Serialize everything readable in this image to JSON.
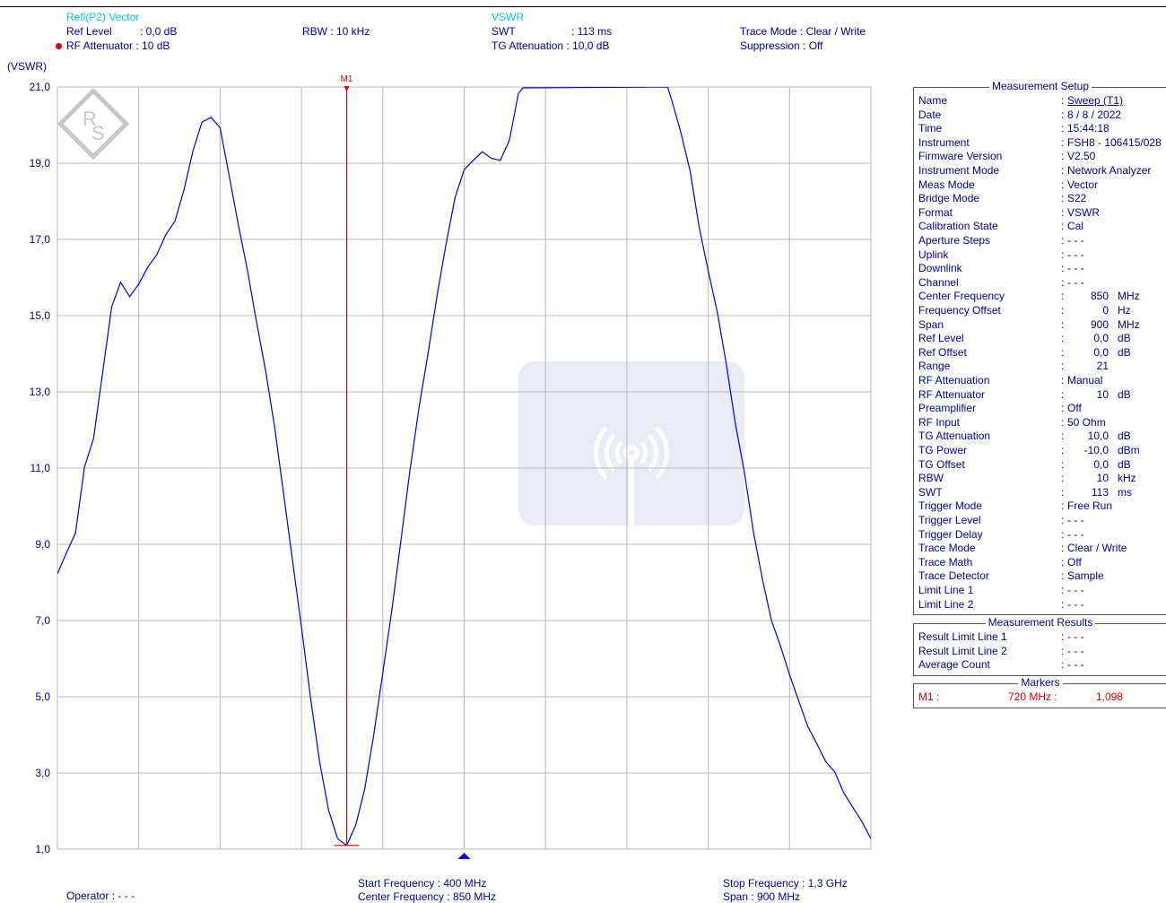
{
  "header": {
    "title": "Refl(P2) Vector",
    "ref_level_label": "Ref Level",
    "ref_level_value": ":   0,0 dB",
    "rf_att_label": "RF Attenuator : 10    dB",
    "rbw": "RBW : 10 kHz",
    "mode_title": "VSWR",
    "swt_label": "SWT",
    "swt_value": ": 113 ms",
    "tg_att": "TG Attenuation : 10,0 dB",
    "trace_mode": "Trace Mode : Clear / Write",
    "suppression": "Suppression : Off"
  },
  "footer": {
    "operator": "Operator : - - -",
    "start_freq": "Start Frequency    : 400 MHz",
    "center_freq": "Center Frequency : 850 MHz",
    "stop_freq": "Stop Frequency :   1,3 GHz",
    "span": "Span                   :  900   MHz"
  },
  "chart_data": {
    "type": "line",
    "ylabel": "(VSWR)",
    "ylim": [
      1,
      21
    ],
    "xlim": [
      400,
      1300
    ],
    "x_unit": "MHz",
    "y_ticks": [
      "21,0",
      "19,0",
      "17,0",
      "15,0",
      "13,0",
      "11,0",
      "9,0",
      "7,0",
      "5,0",
      "3,0",
      "1,0"
    ],
    "grid": true,
    "trace_color": "#0000dd",
    "marker_color": "#e00000",
    "marker": {
      "name": "M1",
      "x": 720,
      "y": 1.098
    },
    "series": [
      {
        "x": [
          400,
          410,
          420,
          430,
          440,
          450,
          460,
          470,
          480,
          490,
          500,
          510,
          520,
          530,
          540,
          550,
          560,
          570,
          580,
          590,
          600,
          610,
          620,
          630,
          640,
          650,
          660,
          670,
          680,
          690,
          700,
          710,
          720,
          730,
          740,
          750,
          760,
          770,
          780,
          790,
          800,
          810,
          820,
          830,
          840,
          850,
          860,
          870,
          880,
          890,
          900,
          910,
          915,
          1075,
          1080,
          1090,
          1100,
          1110,
          1120,
          1130,
          1140,
          1150,
          1160,
          1170,
          1180,
          1190,
          1200,
          1210,
          1220,
          1230,
          1240,
          1250,
          1260,
          1270,
          1280,
          1290,
          1300
        ],
        "y": [
          8.2,
          8.8,
          9.3,
          11.0,
          11.8,
          13.5,
          15.2,
          15.9,
          15.5,
          15.8,
          16.3,
          16.6,
          17.1,
          17.5,
          18.3,
          19.3,
          20.1,
          20.2,
          19.9,
          18.7,
          17.4,
          16.2,
          14.9,
          13.6,
          12.1,
          10.4,
          8.6,
          6.8,
          5.0,
          3.3,
          2.0,
          1.3,
          1.1,
          1.6,
          2.6,
          4.0,
          5.6,
          7.3,
          9.1,
          10.9,
          12.6,
          14.0,
          15.5,
          16.9,
          18.1,
          18.8,
          19.1,
          19.3,
          19.1,
          19.1,
          19.6,
          20.8,
          21.0,
          21.0,
          20.6,
          19.8,
          18.8,
          17.3,
          16.2,
          15.1,
          13.7,
          12.2,
          10.9,
          9.3,
          8.1,
          7.0,
          6.3,
          5.6,
          4.9,
          4.2,
          3.8,
          3.3,
          3.0,
          2.5,
          2.1,
          1.7,
          1.3
        ]
      }
    ]
  },
  "setup_panel": {
    "title": "Measurement Setup",
    "rows": [
      {
        "k": "Name",
        "v": "Sweep (T1)"
      },
      {
        "k": "Date",
        "v": "8 / 8 / 2022"
      },
      {
        "k": "Time",
        "v": "15:44:18"
      },
      {
        "k": "Instrument",
        "v": "FSH8 - 106415/028"
      },
      {
        "k": "Firmware Version",
        "v": "V2.50"
      },
      {
        "k": "Instrument Mode",
        "v": "Network Analyzer"
      },
      {
        "k": "Meas Mode",
        "v": "Vector"
      },
      {
        "k": "Bridge Mode",
        "v": "S22"
      },
      {
        "k": "Format",
        "v": "VSWR"
      },
      {
        "k": "Calibration State",
        "v": "Cal"
      },
      {
        "k": "Aperture Steps",
        "v": "- - -"
      },
      {
        "k": "Uplink",
        "v": "- - -"
      },
      {
        "k": "Downlink",
        "v": "- - -"
      },
      {
        "k": "Channel",
        "v": "- - -"
      },
      {
        "k": "Center Frequency",
        "n": "850",
        "u": "MHz"
      },
      {
        "k": "Frequency Offset",
        "n": "0",
        "u": "Hz"
      },
      {
        "k": "Span",
        "n": "900",
        "u": "MHz"
      },
      {
        "k": "Ref Level",
        "n": "0,0",
        "u": "dB"
      },
      {
        "k": "Ref Offset",
        "n": "0,0",
        "u": "dB"
      },
      {
        "k": "Range",
        "n": "21",
        "u": ""
      },
      {
        "k": "RF Attenuation",
        "v": "Manual"
      },
      {
        "k": "RF Attenuator",
        "n": "10",
        "u": "dB"
      },
      {
        "k": "Preamplifier",
        "v": "Off"
      },
      {
        "k": "RF Input",
        "v": "50 Ohm"
      },
      {
        "k": "TG Attenuation",
        "n": "10,0",
        "u": "dB"
      },
      {
        "k": "TG Power",
        "n": "-10,0",
        "u": "dBm"
      },
      {
        "k": "TG Offset",
        "n": "0,0",
        "u": "dB"
      },
      {
        "k": "RBW",
        "n": "10",
        "u": "kHz"
      },
      {
        "k": "SWT",
        "n": "113",
        "u": "ms"
      },
      {
        "k": "Trigger Mode",
        "v": "Free Run"
      },
      {
        "k": "Trigger Level",
        "v": "- - -"
      },
      {
        "k": "Trigger Delay",
        "v": "- - -"
      },
      {
        "k": "Trace Mode",
        "v": "Clear / Write"
      },
      {
        "k": "Trace Math",
        "v": "Off"
      },
      {
        "k": "Trace Detector",
        "v": "Sample"
      },
      {
        "k": "Limit Line 1",
        "v": "- - -"
      },
      {
        "k": "Limit Line 2",
        "v": "- - -"
      }
    ]
  },
  "results_panel": {
    "title": "Measurement Results",
    "rows": [
      {
        "k": "Result Limit Line 1",
        "v": "- - -"
      },
      {
        "k": "Result Limit Line 2",
        "v": "- - -"
      },
      {
        "k": "Average Count",
        "v": "- - -"
      }
    ]
  },
  "markers_panel": {
    "title": "Markers",
    "name": "M1 :",
    "freq": "720 MHz :",
    "value": "1,098"
  }
}
